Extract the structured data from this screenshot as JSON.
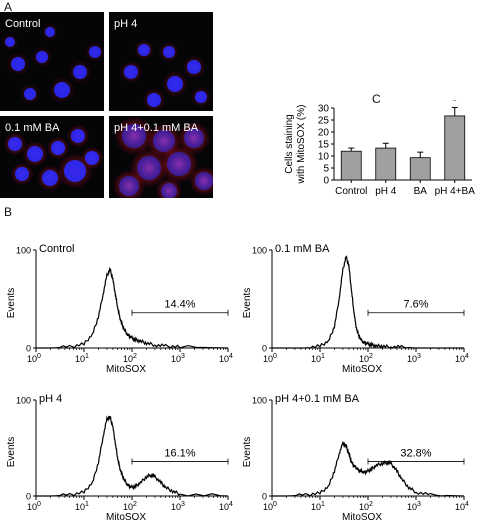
{
  "panel_labels": {
    "a": "A",
    "b": "B",
    "c": "C"
  },
  "micrographs": [
    {
      "id": "control",
      "caption": "Control"
    },
    {
      "id": "ph4",
      "caption": "pH 4"
    },
    {
      "id": "ba",
      "caption": "0.1 mM BA"
    },
    {
      "id": "ph4ba",
      "caption": "pH 4+0.1 mM BA"
    }
  ],
  "colors": {
    "nucleus": "#2a2aff",
    "mitosox": "#ff2222",
    "bar": "#a0a0a0"
  },
  "chart_data": [
    {
      "type": "bar",
      "ylabel": "Cells staining with MitoSOX (%)",
      "ylabel_lines": [
        "Cells staining",
        "with MitoSOX (%)"
      ],
      "categories": [
        "Control",
        "pH 4",
        "BA",
        "pH 4+BA"
      ],
      "values": [
        12,
        13.3,
        9.3,
        26.7
      ],
      "errors": [
        1.3,
        2.0,
        2.3,
        3.5
      ],
      "annotations": [
        "",
        "",
        "",
        "*"
      ],
      "ylim": [
        0,
        30
      ],
      "yticks": [
        "0",
        "5",
        "10",
        "15",
        "20",
        "25",
        "30"
      ]
    },
    {
      "type": "line",
      "title": "Control",
      "ylabel": "Events",
      "xlabel": "MitoSOX",
      "xscale": "log",
      "xlim": [
        1,
        10000
      ],
      "ylim": [
        0,
        100
      ],
      "yticks": [
        "0",
        "100"
      ],
      "xticks": [
        "10^0",
        "10^1",
        "10^2",
        "10^3",
        "10^4"
      ],
      "gate": [
        100,
        10000
      ],
      "gate_label": "14.4%",
      "x": [
        1,
        2,
        5,
        10,
        15,
        20,
        25,
        30,
        35,
        40,
        45,
        50,
        55,
        60,
        70,
        80,
        90,
        100,
        120,
        150,
        200,
        300,
        500,
        1000,
        10000
      ],
      "y": [
        0,
        0,
        1,
        4,
        14,
        32,
        55,
        74,
        80,
        70,
        55,
        42,
        32,
        26,
        18,
        14,
        12,
        10,
        8,
        7,
        5,
        3,
        2,
        1,
        0
      ]
    },
    {
      "type": "line",
      "title": "0.1 mM BA",
      "ylabel": "Events",
      "xlabel": "MitoSOX",
      "xscale": "log",
      "xlim": [
        1,
        10000
      ],
      "ylim": [
        0,
        100
      ],
      "yticks": [
        "0",
        "100"
      ],
      "xticks": [
        "10^0",
        "10^1",
        "10^2",
        "10^3",
        "10^4"
      ],
      "gate": [
        100,
        10000
      ],
      "gate_label": "7.6%",
      "x": [
        1,
        2,
        5,
        10,
        15,
        20,
        25,
        30,
        35,
        40,
        45,
        50,
        55,
        60,
        70,
        80,
        90,
        100,
        120,
        150,
        200,
        300,
        500,
        1000,
        10000
      ],
      "y": [
        0,
        0,
        0,
        2,
        7,
        22,
        50,
        80,
        93,
        84,
        60,
        40,
        25,
        16,
        9,
        6,
        5,
        4,
        3,
        2,
        2,
        1,
        1,
        0,
        0
      ]
    },
    {
      "type": "line",
      "title": "pH 4",
      "ylabel": "Events",
      "xlabel": "MitoSOX",
      "xscale": "log",
      "xlim": [
        1,
        10000
      ],
      "ylim": [
        0,
        100
      ],
      "yticks": [
        "0",
        "100"
      ],
      "xticks": [
        "10^0",
        "10^1",
        "10^2",
        "10^3",
        "10^4"
      ],
      "gate": [
        100,
        10000
      ],
      "gate_label": "16.1%",
      "x": [
        1,
        2,
        5,
        10,
        15,
        20,
        25,
        30,
        35,
        40,
        45,
        50,
        55,
        60,
        70,
        80,
        90,
        100,
        120,
        150,
        200,
        250,
        300,
        400,
        500,
        700,
        1000,
        10000
      ],
      "y": [
        0,
        0,
        1,
        4,
        14,
        35,
        62,
        80,
        82,
        72,
        55,
        40,
        30,
        24,
        16,
        12,
        10,
        9,
        10,
        14,
        20,
        22,
        20,
        14,
        9,
        5,
        2,
        0
      ]
    },
    {
      "type": "line",
      "title": "pH 4+0.1 mM BA",
      "ylabel": "Events",
      "xlabel": "MitoSOX",
      "xscale": "log",
      "xlim": [
        1,
        10000
      ],
      "ylim": [
        0,
        100
      ],
      "yticks": [
        "0",
        "100"
      ],
      "xticks": [
        "10^0",
        "10^1",
        "10^2",
        "10^3",
        "10^4"
      ],
      "gate": [
        100,
        10000
      ],
      "gate_label": "32.8%",
      "x": [
        1,
        2,
        5,
        10,
        15,
        20,
        25,
        30,
        35,
        40,
        45,
        50,
        55,
        60,
        70,
        80,
        90,
        100,
        120,
        150,
        200,
        250,
        300,
        400,
        500,
        700,
        1000,
        2000,
        10000
      ],
      "y": [
        0,
        0,
        1,
        3,
        10,
        26,
        44,
        55,
        52,
        44,
        36,
        32,
        30,
        28,
        26,
        25,
        25,
        26,
        28,
        32,
        34,
        35,
        34,
        26,
        18,
        9,
        4,
        1,
        0
      ]
    }
  ]
}
